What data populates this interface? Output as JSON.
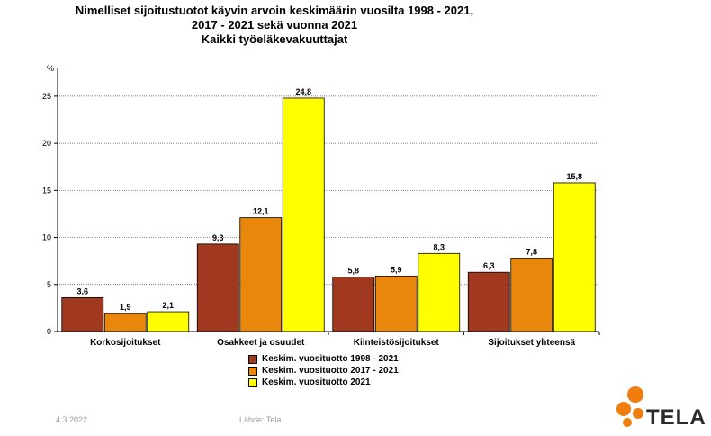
{
  "title_lines": [
    "Nimelliset sijoitustuotot käyvin arvoin keskimäärin vuosilta 1998 - 2021,",
    "2017 - 2021 sekä vuonna 2021",
    "Kaikki työeläkevakuuttajat"
  ],
  "chart_data": {
    "type": "bar",
    "title": "Nimelliset sijoitustuotot käyvin arvoin keskimäärin vuosilta 1998 - 2021, 2017 - 2021 sekä vuonna 2021 Kaikki työeläkevakuuttajat",
    "ylabel": "%",
    "ylim": [
      0,
      27
    ],
    "yticks": [
      0,
      5,
      10,
      15,
      20,
      25
    ],
    "grid": true,
    "legend_position": "bottom-center",
    "categories": [
      "Korkosijoitukset",
      "Osakkeet ja osuudet",
      "Kiinteistösijoitukset",
      "Sijoitukset yhteensä"
    ],
    "series": [
      {
        "name": "Keskim. vuosituotto 1998 - 2021",
        "color": "#A0391F",
        "values": [
          3.6,
          9.3,
          5.8,
          6.3
        ],
        "labels": [
          "3,6",
          "9,3",
          "5,8",
          "6,3"
        ]
      },
      {
        "name": "Keskim. vuosituotto 2017 - 2021",
        "color": "#E8870C",
        "values": [
          1.9,
          12.1,
          5.9,
          7.8
        ],
        "labels": [
          "1,9",
          "12,1",
          "5,9",
          "7,8"
        ]
      },
      {
        "name": "Keskim. vuosituotto 2021",
        "color": "#FFFF00",
        "values": [
          2.1,
          24.8,
          8.3,
          15.8
        ],
        "labels": [
          "2,1",
          "24,8",
          "8,3",
          "15,8"
        ]
      }
    ]
  },
  "footer": {
    "date": "4.3.2022",
    "source": "Lähde: Tela"
  },
  "logo": {
    "text": "TELA",
    "dot_color": "#F07E0E"
  }
}
